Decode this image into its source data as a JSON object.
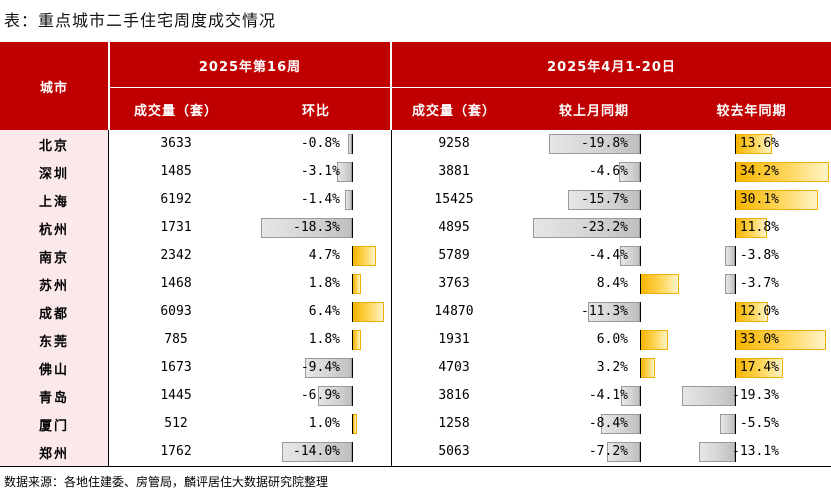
{
  "title": "表：重点城市二手住宅周度成交情况",
  "header": {
    "city": "城市",
    "group1": "2025年第16周",
    "group2": "2025年4月1-20日",
    "col_volume1": "成交量（套）",
    "col_wow": "环比",
    "col_volume2": "成交量（套）",
    "col_mom": "较上月同期",
    "col_yoy": "较去年同期"
  },
  "colors": {
    "header_bg": "#c00000",
    "city_bg": "#fbe8ea",
    "positive_bar": "#ffc000",
    "negative_bar": "#d0d0d0"
  },
  "rows": [
    {
      "city": "北京",
      "week_volume": "3633",
      "wow": "-0.8%",
      "wow_value": -0.8,
      "period_volume": "9258",
      "mom": "-19.8%",
      "mom_value": -19.8,
      "yoy": "13.6%",
      "yoy_value": 13.6
    },
    {
      "city": "深圳",
      "week_volume": "1485",
      "wow": "-3.1%",
      "wow_value": -3.1,
      "period_volume": "3881",
      "mom": "-4.6%",
      "mom_value": -4.6,
      "yoy": "34.2%",
      "yoy_value": 34.2
    },
    {
      "city": "上海",
      "week_volume": "6192",
      "wow": "-1.4%",
      "wow_value": -1.4,
      "period_volume": "15425",
      "mom": "-15.7%",
      "mom_value": -15.7,
      "yoy": "30.1%",
      "yoy_value": 30.1
    },
    {
      "city": "杭州",
      "week_volume": "1731",
      "wow": "-18.3%",
      "wow_value": -18.3,
      "period_volume": "4895",
      "mom": "-23.2%",
      "mom_value": -23.2,
      "yoy": "11.8%",
      "yoy_value": 11.8
    },
    {
      "city": "南京",
      "week_volume": "2342",
      "wow": "4.7%",
      "wow_value": 4.7,
      "period_volume": "5789",
      "mom": "-4.4%",
      "mom_value": -4.4,
      "yoy": "-3.8%",
      "yoy_value": -3.8
    },
    {
      "city": "苏州",
      "week_volume": "1468",
      "wow": "1.8%",
      "wow_value": 1.8,
      "period_volume": "3763",
      "mom": "8.4%",
      "mom_value": 8.4,
      "yoy": "-3.7%",
      "yoy_value": -3.7
    },
    {
      "city": "成都",
      "week_volume": "6093",
      "wow": "6.4%",
      "wow_value": 6.4,
      "period_volume": "14870",
      "mom": "-11.3%",
      "mom_value": -11.3,
      "yoy": "12.0%",
      "yoy_value": 12.0
    },
    {
      "city": "东莞",
      "week_volume": "785",
      "wow": "1.8%",
      "wow_value": 1.8,
      "period_volume": "1931",
      "mom": "6.0%",
      "mom_value": 6.0,
      "yoy": "33.0%",
      "yoy_value": 33.0
    },
    {
      "city": "佛山",
      "week_volume": "1673",
      "wow": "-9.4%",
      "wow_value": -9.4,
      "period_volume": "4703",
      "mom": "3.2%",
      "mom_value": 3.2,
      "yoy": "17.4%",
      "yoy_value": 17.4
    },
    {
      "city": "青岛",
      "week_volume": "1445",
      "wow": "-6.9%",
      "wow_value": -6.9,
      "period_volume": "3816",
      "mom": "-4.1%",
      "mom_value": -4.1,
      "yoy": "-19.3%",
      "yoy_value": -19.3
    },
    {
      "city": "厦门",
      "week_volume": "512",
      "wow": "1.0%",
      "wow_value": 1.0,
      "period_volume": "1258",
      "mom": "-8.4%",
      "mom_value": -8.4,
      "yoy": "-5.5%",
      "yoy_value": -5.5
    },
    {
      "city": "郑州",
      "week_volume": "1762",
      "wow": "-14.0%",
      "wow_value": -14.0,
      "period_volume": "5063",
      "mom": "-7.2%",
      "mom_value": -7.2,
      "yoy": "-13.1%",
      "yoy_value": -13.1
    }
  ],
  "source": "数据来源：各地住建委、房管局，麟评居住大数据研究院整理"
}
